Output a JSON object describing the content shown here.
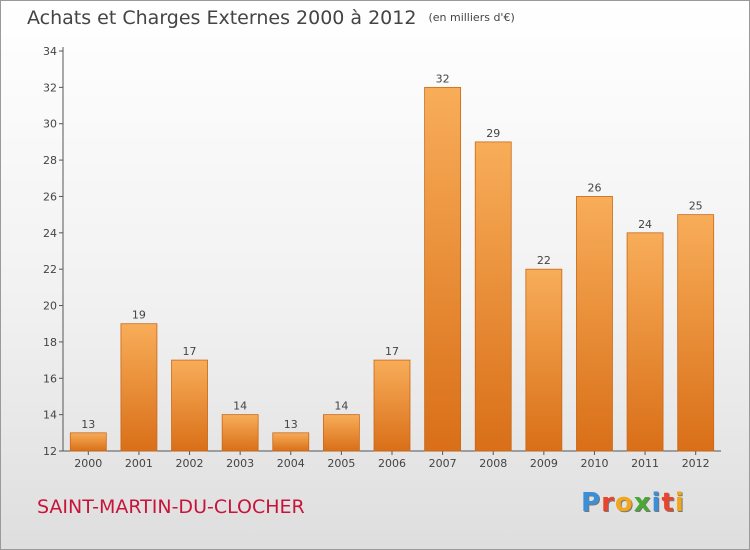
{
  "title": "Achats et Charges Externes 2000 à 2012",
  "unit": "(en milliers d'€)",
  "commune": "SAINT-MARTIN-DU-CLOCHER",
  "logo": {
    "letters": [
      "P",
      "r",
      "o",
      "x",
      "i",
      "t",
      "i"
    ],
    "colors": [
      "#3a8fd8",
      "#e8452c",
      "#f2a71b",
      "#4aa834",
      "#3a8fd8",
      "#e8452c",
      "#f2a71b"
    ]
  },
  "chart_data": {
    "type": "bar",
    "categories": [
      "2000",
      "2001",
      "2002",
      "2003",
      "2004",
      "2005",
      "2006",
      "2007",
      "2008",
      "2009",
      "2010",
      "2011",
      "2012"
    ],
    "values": [
      13,
      19,
      17,
      14,
      13,
      14,
      17,
      32,
      29,
      22,
      26,
      24,
      25
    ],
    "ylim": [
      12,
      34
    ],
    "yticks": [
      12,
      14,
      16,
      18,
      20,
      22,
      24,
      26,
      28,
      30,
      32,
      34
    ],
    "grid": false,
    "bar_color": "#f29a3e"
  }
}
